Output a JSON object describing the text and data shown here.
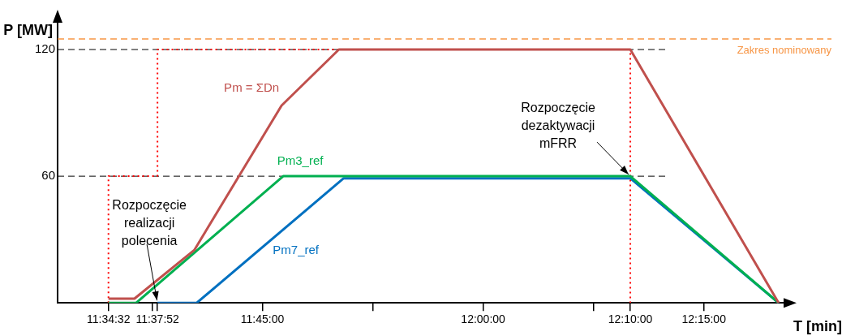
{
  "chart_data": {
    "type": "line",
    "xlabel": "T [min]",
    "ylabel": "P [MW]",
    "legend": false,
    "xlim": [
      11.518,
      12.344
    ],
    "ylim": [
      0,
      135
    ],
    "xticks": [
      {
        "value": 11.5756,
        "label": "11:34:32"
      },
      {
        "value": 11.625,
        "label": null
      },
      {
        "value": 11.6311,
        "label": "11:37:52"
      },
      {
        "value": 11.75,
        "label": "11:45:00"
      },
      {
        "value": 11.875,
        "label": null
      },
      {
        "value": 12,
        "label": "12:00:00"
      },
      {
        "value": 12.125,
        "label": null
      },
      {
        "value": 12.1667,
        "label": "12:10:00"
      },
      {
        "value": 12.25,
        "label": "12:15:00"
      }
    ],
    "yticks": [
      60,
      120
    ],
    "series": [
      {
        "name": "Pm = ΣDn",
        "color": "#c0504d",
        "x": [
          11.5756,
          11.605,
          11.6728,
          11.7717,
          11.8366,
          12.1667,
          12.3347
        ],
        "values": [
          2,
          2,
          25,
          93.5,
          120,
          120,
          0
        ]
      },
      {
        "name": "Pm3_ref",
        "color": "#00b050",
        "x": [
          11.5756,
          11.607,
          11.7735,
          12.1667,
          12.3347
        ],
        "values": [
          0,
          0,
          60,
          60,
          0
        ]
      },
      {
        "name": "Pm7_ref",
        "color": "#0070c0",
        "x": [
          11.6311,
          11.6756,
          11.842,
          12.1667,
          12.3347
        ],
        "values": [
          0,
          0,
          59,
          59,
          0
        ]
      },
      {
        "color": "#ff0000",
        "line_style": "dotted",
        "x": [
          11.5756,
          11.5756,
          11.6311,
          11.6311,
          12.1667,
          12.1667
        ],
        "values": [
          0,
          60,
          60,
          120,
          120,
          0
        ]
      }
    ],
    "ref_lines": [
      {
        "axis": "y",
        "value": 125,
        "label": "Zakres nominowany",
        "color": "#f79646",
        "line_style": "dashed"
      },
      {
        "axis": "y",
        "value": 60,
        "color": "#000000",
        "line_style": "dashed"
      },
      {
        "axis": "y",
        "value": 120,
        "color": "#000000",
        "line_style": "dashed"
      }
    ],
    "annotations": [
      {
        "text": "Rozpoczęcie realizacji polecenia",
        "x": 11.6311,
        "y": 0
      },
      {
        "text": "Rozpoczęcie dezaktywacji mFRR",
        "x": 12.1667,
        "y": 60
      }
    ]
  }
}
